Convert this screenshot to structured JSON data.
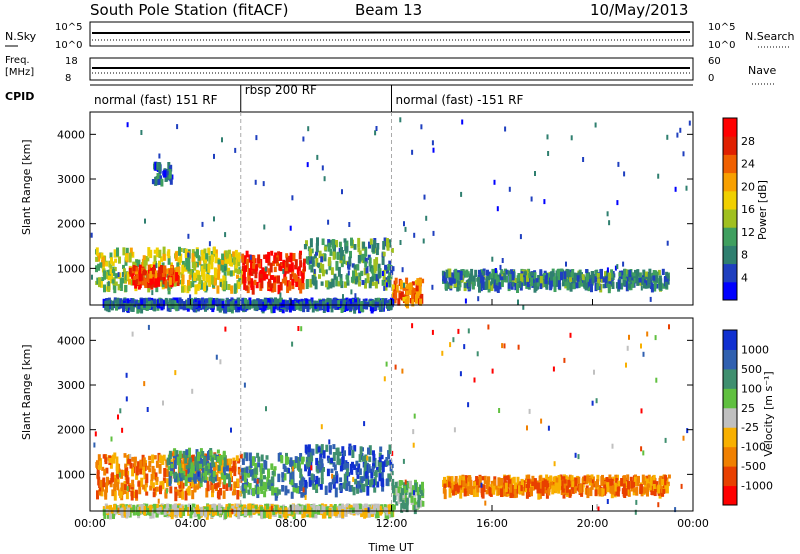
{
  "header": {
    "title": "South Pole Station (fitACF)",
    "beam": "Beam 13",
    "date": "10/May/2013"
  },
  "top_panels": {
    "nsky_label": "N.Sky",
    "nsearch_label": "N.Search",
    "nsky_ticks": [
      "10^5",
      "10^0"
    ],
    "nsearch_ticks": [
      "10^5",
      "10^0"
    ],
    "freq_label_1": "Freq.",
    "freq_label_2": "[MHz]",
    "freq_ticks": [
      "18",
      "8"
    ],
    "nave_label": "Nave",
    "nave_ticks": [
      "60",
      "0"
    ],
    "cpid_label": "CPID",
    "cpid_segments": [
      {
        "label": "normal (fast) 151 RF",
        "start_hr": 0,
        "end_hr": 6
      },
      {
        "label": "rbsp 200 RF",
        "start_hr": 6,
        "end_hr": 12
      },
      {
        "label": "normal (fast) -151 RF",
        "start_hr": 12,
        "end_hr": 24
      }
    ]
  },
  "chart_data": [
    {
      "type": "heatmap",
      "name": "power",
      "xlabel": "Time UT",
      "ylabel": "Slant Range [km]",
      "xlim": [
        0,
        24
      ],
      "ylim": [
        180,
        4500
      ],
      "xticks": [
        "00:00",
        "04:00",
        "08:00",
        "12:00",
        "16:00",
        "20:00",
        "00:00"
      ],
      "yticks": [
        1000,
        2000,
        3000,
        4000
      ],
      "colorbar": {
        "label": "Power [dB]",
        "ticks": [
          4,
          8,
          12,
          16,
          20,
          24,
          28
        ],
        "range": [
          0,
          30
        ],
        "colors": [
          "#0000ff",
          "#1f3fbf",
          "#2f7f6f",
          "#3f9f5f",
          "#a0c020",
          "#f0d000",
          "#f8a000",
          "#f06000",
          "#e02000",
          "#ff0000"
        ]
      },
      "patches": [
        {
          "t0": 0.2,
          "t1": 6.0,
          "r0": 600,
          "r1": 1500,
          "level": 14
        },
        {
          "t0": 1.5,
          "t1": 3.5,
          "r0": 700,
          "r1": 1100,
          "level": 24
        },
        {
          "t0": 6.0,
          "t1": 8.5,
          "r0": 600,
          "r1": 1400,
          "level": 26
        },
        {
          "t0": 8.5,
          "t1": 12.0,
          "r0": 700,
          "r1": 1700,
          "level": 10
        },
        {
          "t0": 12.0,
          "t1": 13.2,
          "r0": 300,
          "r1": 800,
          "level": 22
        },
        {
          "t0": 14.0,
          "t1": 23.0,
          "r0": 650,
          "r1": 1000,
          "level": 8
        },
        {
          "t0": 0.5,
          "t1": 12.0,
          "r0": 200,
          "r1": 350,
          "level": 6
        },
        {
          "t0": 2.5,
          "t1": 3.2,
          "r0": 3000,
          "r1": 3400,
          "level": 6
        }
      ]
    },
    {
      "type": "heatmap",
      "name": "velocity",
      "xlabel": "Time UT",
      "ylabel": "Slant Range [km]",
      "xlim": [
        0,
        24
      ],
      "ylim": [
        180,
        4500
      ],
      "xticks": [
        "00:00",
        "04:00",
        "08:00",
        "12:00",
        "16:00",
        "20:00",
        "00:00"
      ],
      "yticks": [
        1000,
        2000,
        3000,
        4000
      ],
      "colorbar": {
        "label": "Velocity [m s⁻¹]",
        "ticks": [
          "1000",
          "500",
          "100",
          "25",
          "-25",
          "-100",
          "-500",
          "-1000"
        ],
        "colors": [
          "#ff0000",
          "#e84000",
          "#f08000",
          "#f8b000",
          "#c0c0c0",
          "#60c040",
          "#3f8f6f",
          "#3060b0",
          "#1030d0"
        ]
      },
      "patches": [
        {
          "t0": 0.2,
          "t1": 6.0,
          "r0": 600,
          "r1": 1500,
          "level": -100
        },
        {
          "t0": 3.0,
          "t1": 5.5,
          "r0": 900,
          "r1": 1600,
          "level": 500
        },
        {
          "t0": 6.0,
          "t1": 8.5,
          "r0": 600,
          "r1": 1500,
          "level": 500
        },
        {
          "t0": 8.5,
          "t1": 12.0,
          "r0": 700,
          "r1": 1700,
          "level": 1000
        },
        {
          "t0": 12.0,
          "t1": 13.2,
          "r0": 300,
          "r1": 900,
          "level": 100
        },
        {
          "t0": 14.0,
          "t1": 23.0,
          "r0": 650,
          "r1": 1000,
          "level": -100
        },
        {
          "t0": 0.5,
          "t1": 12.0,
          "r0": 200,
          "r1": 350,
          "level": 25
        }
      ]
    }
  ]
}
